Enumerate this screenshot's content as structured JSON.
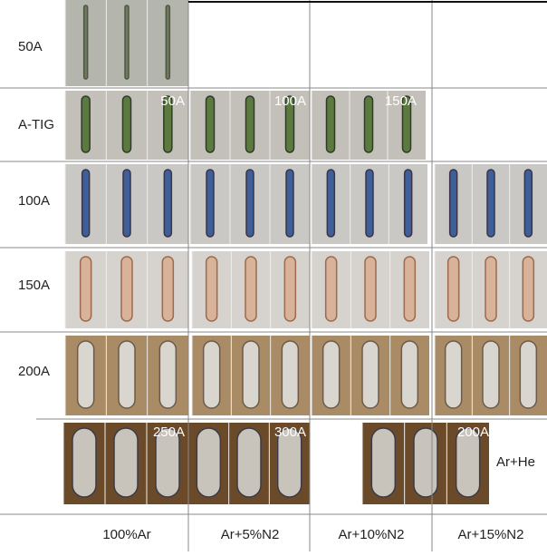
{
  "row_labels": [
    "50A",
    "A-TIG",
    "100A",
    "150A",
    "200A"
  ],
  "column_labels": [
    "100%Ar",
    "Ar+5%N2",
    "Ar+10%N2",
    "Ar+15%N2"
  ],
  "panel_labels": [
    "50A",
    "100A",
    "150A",
    "250A",
    "300A",
    "200A"
  ],
  "side_label": "Ar+He"
}
